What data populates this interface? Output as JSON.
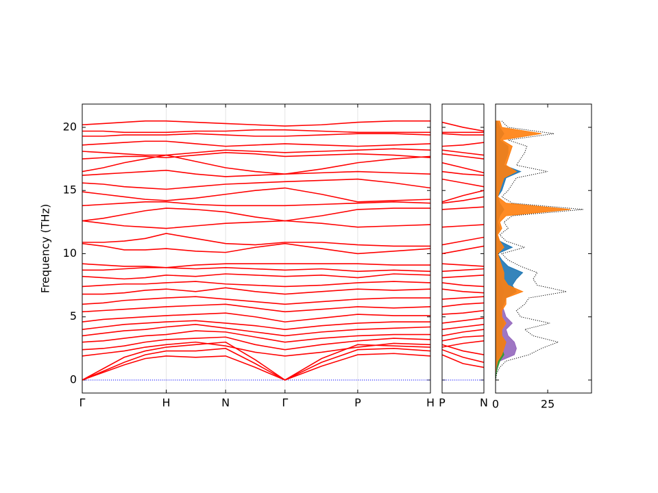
{
  "chart_data": [
    {
      "type": "line",
      "ylabel": "Frequency (THz)",
      "color": "#ff0000",
      "x": [
        0,
        0.25,
        0.5,
        0.75,
        1,
        1.35,
        1.707,
        2.06,
        2.414,
        2.85,
        3.28,
        3.71,
        4.146
      ],
      "xlim": [
        0,
        4.146
      ],
      "xticks": [
        {
          "value": 0,
          "label": "Γ"
        },
        {
          "value": 1,
          "label": "H"
        },
        {
          "value": 1.707,
          "label": "N"
        },
        {
          "value": 2.414,
          "label": "Γ"
        },
        {
          "value": 3.28,
          "label": "P"
        },
        {
          "value": 4.146,
          "label": "H"
        }
      ],
      "ylim": [
        -1.03,
        21.84
      ],
      "yticks": [
        0,
        5,
        10,
        15,
        20
      ],
      "series": [
        {
          "values": [
            0,
            0,
            0,
            0,
            0,
            0,
            0,
            0,
            0,
            0,
            0,
            0,
            0
          ],
          "color": "#0000ff",
          "linestyle": "dotted"
        },
        {
          "values": [
            0,
            0.6,
            1.2,
            1.7,
            1.9,
            1.8,
            1.9,
            1.0,
            0,
            1.1,
            2.0,
            2.1,
            1.9
          ]
        },
        {
          "values": [
            0,
            0.7,
            1.4,
            2.0,
            2.3,
            2.3,
            2.5,
            1.3,
            0,
            1.4,
            2.4,
            2.5,
            2.3
          ]
        },
        {
          "values": [
            0,
            0.9,
            1.8,
            2.3,
            2.6,
            2.8,
            3.0,
            1.6,
            0,
            1.7,
            2.8,
            2.7,
            2.6
          ]
        },
        {
          "values": [
            1.9,
            2.1,
            2.3,
            2.6,
            2.8,
            3.0,
            2.7,
            2.2,
            1.9,
            2.2,
            2.6,
            2.9,
            2.8
          ]
        },
        {
          "values": [
            2.4,
            2.5,
            2.7,
            3.0,
            3.2,
            3.3,
            3.4,
            2.8,
            2.4,
            2.8,
            3.1,
            3.3,
            3.2
          ]
        },
        {
          "values": [
            3.0,
            3.1,
            3.3,
            3.5,
            3.6,
            3.9,
            3.8,
            3.4,
            3.0,
            3.3,
            3.5,
            3.6,
            3.6
          ]
        },
        {
          "values": [
            3.5,
            3.7,
            3.9,
            4.0,
            4.2,
            4.4,
            4.1,
            3.8,
            3.5,
            3.8,
            4.0,
            4.1,
            4.2
          ]
        },
        {
          "values": [
            4.0,
            4.2,
            4.4,
            4.5,
            4.6,
            4.7,
            4.5,
            4.3,
            4.0,
            4.3,
            4.5,
            4.6,
            4.6
          ]
        },
        {
          "values": [
            4.6,
            4.8,
            4.9,
            5.0,
            5.1,
            5.2,
            5.3,
            5.0,
            4.6,
            4.9,
            5.2,
            5.1,
            5.1
          ]
        },
        {
          "values": [
            5.4,
            5.5,
            5.6,
            5.7,
            5.8,
            5.9,
            6.0,
            5.7,
            5.4,
            5.6,
            5.8,
            5.7,
            5.8
          ]
        },
        {
          "values": [
            6.0,
            6.1,
            6.3,
            6.4,
            6.5,
            6.6,
            6.4,
            6.2,
            6.0,
            6.2,
            6.4,
            6.5,
            6.5
          ]
        },
        {
          "values": [
            6.8,
            6.8,
            6.9,
            7.1,
            7.2,
            7.0,
            7.3,
            7.0,
            6.8,
            7.0,
            7.2,
            7.1,
            7.2
          ]
        },
        {
          "values": [
            7.4,
            7.5,
            7.6,
            7.6,
            7.7,
            7.8,
            7.6,
            7.5,
            7.4,
            7.5,
            7.7,
            7.8,
            7.7
          ]
        },
        {
          "values": [
            8.2,
            8.1,
            8.0,
            8.1,
            8.3,
            8.2,
            8.4,
            8.3,
            8.2,
            8.3,
            8.1,
            8.4,
            8.3
          ]
        },
        {
          "values": [
            8.7,
            8.7,
            8.8,
            8.9,
            8.9,
            8.8,
            8.9,
            8.8,
            8.7,
            8.8,
            8.6,
            8.7,
            8.6
          ]
        },
        {
          "values": [
            9.2,
            9.1,
            9.0,
            9.0,
            8.9,
            9.1,
            9.2,
            9.2,
            9.2,
            9.2,
            9.2,
            9.1,
            9.1
          ]
        },
        {
          "values": [
            10.8,
            10.6,
            10.3,
            10.3,
            10.4,
            10.2,
            10.1,
            10.5,
            10.8,
            10.4,
            10.0,
            10.2,
            10.4
          ]
        },
        {
          "values": [
            10.9,
            10.9,
            11.0,
            11.2,
            11.6,
            11.2,
            10.8,
            10.7,
            10.9,
            10.9,
            10.7,
            10.6,
            10.6
          ]
        },
        {
          "values": [
            12.6,
            12.4,
            12.2,
            12.1,
            12.0,
            12.2,
            12.4,
            12.5,
            12.6,
            12.4,
            12.1,
            12.2,
            12.3
          ]
        },
        {
          "values": [
            12.6,
            12.8,
            13.1,
            13.4,
            13.6,
            13.5,
            13.3,
            12.9,
            12.6,
            13.0,
            13.5,
            13.6,
            13.6
          ]
        },
        {
          "values": [
            13.8,
            13.9,
            14.0,
            14.1,
            14.1,
            13.9,
            13.8,
            13.8,
            13.8,
            13.9,
            14.0,
            14.1,
            14.0
          ]
        },
        {
          "values": [
            14.9,
            14.7,
            14.5,
            14.3,
            14.2,
            14.4,
            14.7,
            15.0,
            15.2,
            14.7,
            14.1,
            14.2,
            14.3
          ]
        },
        {
          "values": [
            15.6,
            15.5,
            15.3,
            15.2,
            15.1,
            15.3,
            15.5,
            15.6,
            15.7,
            15.8,
            15.9,
            15.6,
            15.2
          ]
        },
        {
          "values": [
            16.2,
            16.3,
            16.4,
            16.5,
            16.6,
            16.3,
            16.1,
            16.2,
            16.3,
            16.4,
            16.5,
            16.4,
            16.3
          ]
        },
        {
          "values": [
            16.5,
            16.8,
            17.2,
            17.5,
            17.8,
            17.3,
            16.8,
            16.5,
            16.3,
            16.7,
            17.2,
            17.5,
            17.7
          ]
        },
        {
          "values": [
            17.5,
            17.6,
            17.7,
            17.7,
            17.6,
            17.8,
            18.0,
            17.9,
            17.7,
            17.8,
            17.9,
            17.8,
            17.6
          ]
        },
        {
          "values": [
            18.1,
            18.0,
            17.9,
            17.8,
            17.8,
            18.0,
            18.2,
            18.1,
            18.0,
            18.1,
            18.2,
            18.3,
            18.2
          ]
        },
        {
          "values": [
            18.6,
            18.7,
            18.8,
            18.9,
            18.9,
            18.7,
            18.5,
            18.6,
            18.7,
            18.6,
            18.5,
            18.6,
            18.7
          ]
        },
        {
          "values": [
            19.3,
            19.3,
            19.4,
            19.4,
            19.4,
            19.5,
            19.4,
            19.3,
            19.3,
            19.4,
            19.5,
            19.5,
            19.4
          ]
        },
        {
          "values": [
            19.7,
            19.7,
            19.6,
            19.6,
            19.6,
            19.7,
            19.7,
            19.8,
            19.8,
            19.7,
            19.6,
            19.6,
            19.6
          ]
        },
        {
          "values": [
            20.2,
            20.3,
            20.4,
            20.5,
            20.5,
            20.4,
            20.3,
            20.2,
            20.1,
            20.2,
            20.4,
            20.5,
            20.5
          ]
        }
      ]
    },
    {
      "type": "line",
      "color": "#ff0000",
      "x": [
        0,
        0.354,
        0.707
      ],
      "xlim": [
        0,
        0.707
      ],
      "xticks": [
        {
          "value": 0,
          "label": "P"
        },
        {
          "value": 0.707,
          "label": "N"
        }
      ],
      "series": [
        {
          "values": [
            0,
            0,
            0
          ],
          "color": "#0000ff",
          "linestyle": "dotted"
        },
        {
          "values": [
            2.0,
            1.3,
            1.0
          ]
        },
        {
          "values": [
            2.4,
            1.8,
            1.4
          ]
        },
        {
          "values": [
            2.8,
            2.3,
            2.0
          ]
        },
        {
          "values": [
            2.6,
            2.9,
            3.1
          ]
        },
        {
          "values": [
            3.1,
            3.4,
            3.5
          ]
        },
        {
          "values": [
            3.5,
            3.8,
            4.0
          ]
        },
        {
          "values": [
            4.0,
            4.2,
            4.4
          ]
        },
        {
          "values": [
            4.5,
            4.7,
            4.9
          ]
        },
        {
          "values": [
            5.2,
            5.3,
            5.5
          ]
        },
        {
          "values": [
            5.8,
            6.0,
            6.1
          ]
        },
        {
          "values": [
            6.4,
            6.5,
            6.6
          ]
        },
        {
          "values": [
            7.2,
            7.0,
            6.9
          ]
        },
        {
          "values": [
            7.7,
            7.5,
            7.4
          ]
        },
        {
          "values": [
            8.1,
            8.2,
            8.3
          ]
        },
        {
          "values": [
            8.6,
            8.7,
            8.8
          ]
        },
        {
          "values": [
            9.2,
            9.1,
            9.0
          ]
        },
        {
          "values": [
            10.0,
            10.3,
            10.6
          ]
        },
        {
          "values": [
            10.7,
            11.0,
            11.3
          ]
        },
        {
          "values": [
            12.1,
            12.2,
            12.3
          ]
        },
        {
          "values": [
            13.5,
            13.6,
            13.7
          ]
        },
        {
          "values": [
            14.0,
            14.2,
            14.5
          ]
        },
        {
          "values": [
            14.1,
            14.6,
            15.0
          ]
        },
        {
          "values": [
            15.9,
            15.6,
            15.3
          ]
        },
        {
          "values": [
            16.5,
            16.3,
            16.2
          ]
        },
        {
          "values": [
            17.2,
            16.8,
            16.4
          ]
        },
        {
          "values": [
            17.9,
            17.7,
            17.5
          ]
        },
        {
          "values": [
            18.2,
            18.0,
            17.8
          ]
        },
        {
          "values": [
            18.5,
            18.6,
            18.8
          ]
        },
        {
          "values": [
            19.5,
            19.4,
            19.4
          ]
        },
        {
          "values": [
            19.6,
            19.6,
            19.6
          ]
        },
        {
          "values": [
            20.4,
            20.0,
            19.7
          ]
        }
      ]
    },
    {
      "type": "dos",
      "y": [
        0,
        0.5,
        1,
        1.5,
        2,
        2.5,
        3,
        3.5,
        4,
        4.5,
        5,
        5.5,
        6,
        6.5,
        7,
        7.5,
        8,
        8.5,
        9,
        9.5,
        10,
        10.5,
        11,
        11.5,
        12,
        12.5,
        13,
        13.5,
        14,
        14.5,
        15,
        15.5,
        16,
        16.5,
        17,
        17.5,
        18,
        18.5,
        19,
        19.5,
        20,
        20.5
      ],
      "xlim": [
        0,
        46
      ],
      "xticks": [
        0,
        25
      ],
      "series": [
        {
          "color": "#9467bd",
          "values": [
            0,
            0.2,
            1,
            2,
            9,
            10,
            9,
            6,
            5,
            8,
            5,
            4,
            3,
            3,
            4,
            3,
            2,
            1,
            1,
            0.5,
            0,
            0,
            0,
            0,
            0,
            0,
            0,
            0,
            0,
            0,
            0,
            0,
            0,
            0,
            0,
            0,
            0,
            0,
            0,
            0,
            0,
            0
          ]
        },
        {
          "color": "#2ca02c",
          "values": [
            0,
            0.3,
            1,
            2,
            4,
            3,
            3,
            2,
            2,
            3,
            1,
            1,
            1,
            1,
            1,
            1,
            0.5,
            0.5,
            0.5,
            0,
            0,
            0,
            0,
            0,
            0,
            0,
            0,
            0,
            0,
            0,
            0,
            0,
            0,
            0,
            0,
            0,
            0,
            0,
            0,
            0,
            0,
            0
          ]
        },
        {
          "color": "#1f77b4",
          "values": [
            0,
            0,
            0.5,
            1,
            3,
            4,
            5,
            3,
            3,
            4,
            3,
            2,
            4,
            5,
            10,
            8,
            10,
            13,
            6,
            3,
            1,
            8,
            2,
            0.5,
            2,
            1,
            2,
            4,
            2,
            1,
            3,
            4,
            5,
            12,
            4,
            5,
            6,
            6,
            2,
            4,
            2,
            1
          ]
        },
        {
          "color": "#ff7f0e",
          "values": [
            0,
            0,
            0.3,
            1,
            3,
            4,
            5,
            3,
            3,
            5,
            3,
            3,
            5,
            5,
            13,
            6,
            4,
            4,
            3,
            2,
            1,
            4,
            2,
            1,
            3,
            2,
            5,
            36,
            5,
            1,
            2,
            3,
            4,
            10,
            5,
            6,
            7,
            8,
            3,
            22,
            3,
            2
          ]
        },
        {
          "color": "#000000",
          "linestyle": "dotted",
          "values": [
            0,
            0.5,
            2,
            5,
            16,
            22,
            30,
            18,
            14,
            26,
            12,
            10,
            14,
            16,
            34,
            20,
            18,
            20,
            12,
            6,
            3,
            14,
            5,
            2,
            6,
            4,
            8,
            42,
            8,
            3,
            6,
            8,
            10,
            25,
            10,
            12,
            14,
            15,
            6,
            28,
            6,
            3
          ]
        }
      ]
    }
  ]
}
